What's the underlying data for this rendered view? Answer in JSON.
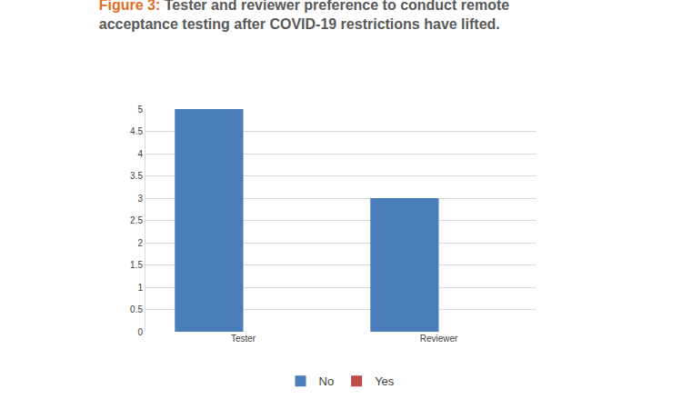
{
  "chart_data": {
    "type": "bar",
    "title": "Figure 3: Tester and reviewer preference to conduct remote acceptance testing after COVID-19 restrictions have lifted.",
    "categories": [
      "Tester",
      "Reviewer"
    ],
    "series": [
      {
        "name": "No",
        "color": "#4a7ebb",
        "values": [
          5,
          3
        ]
      },
      {
        "name": "Yes",
        "color": "#be4b48",
        "values": [
          0,
          0
        ]
      }
    ],
    "ylim": [
      0,
      5
    ],
    "yticks": [
      0,
      0.5,
      1,
      1.5,
      2,
      2.5,
      3,
      3.5,
      4,
      4.5,
      5
    ],
    "grid": true,
    "legend": "bottom"
  }
}
